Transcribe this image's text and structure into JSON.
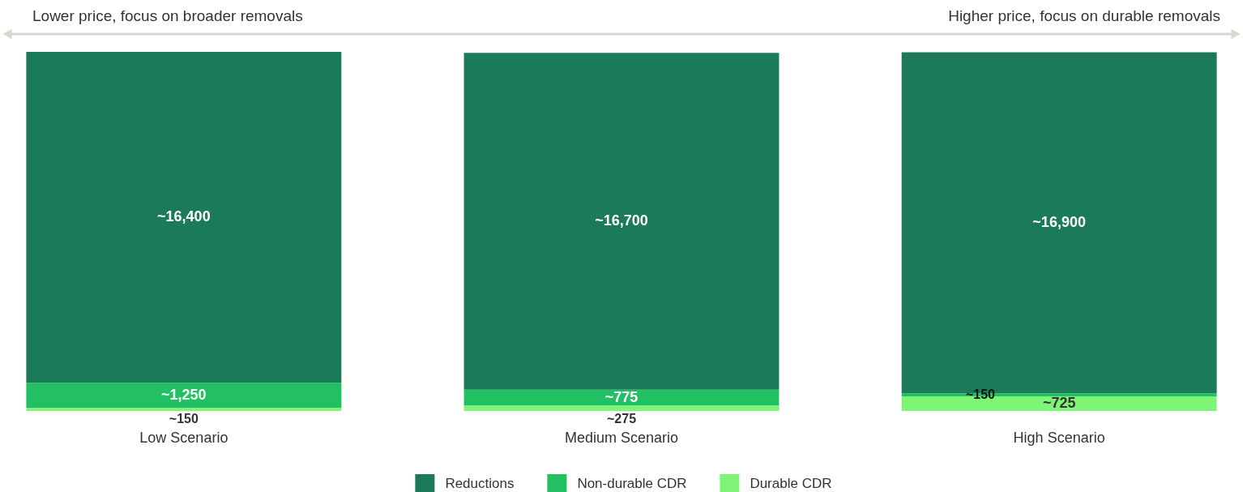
{
  "chart_data": {
    "type": "bar",
    "stacked": true,
    "categories": [
      "Low Scenario",
      "Medium Scenario",
      "High Scenario"
    ],
    "series": [
      {
        "name": "Durable CDR",
        "color": "#7ef575",
        "values": [
          150,
          275,
          725
        ],
        "value_labels": [
          "~150",
          "~275",
          "~725"
        ]
      },
      {
        "name": "Non-durable CDR",
        "color": "#22c062",
        "values": [
          1250,
          775,
          150
        ],
        "value_labels": [
          "~1,250",
          "~775",
          "~150"
        ]
      },
      {
        "name": "Reductions",
        "color": "#1b7a57",
        "values": [
          16400,
          16700,
          16900
        ],
        "value_labels": [
          "~16,400",
          "~16,700",
          "~16,900"
        ]
      }
    ],
    "legend": "bottom",
    "tick_labels": "x",
    "annotations": [
      "Lower price, focus on broader removals",
      "Higher price, focus on durable removals"
    ]
  }
}
